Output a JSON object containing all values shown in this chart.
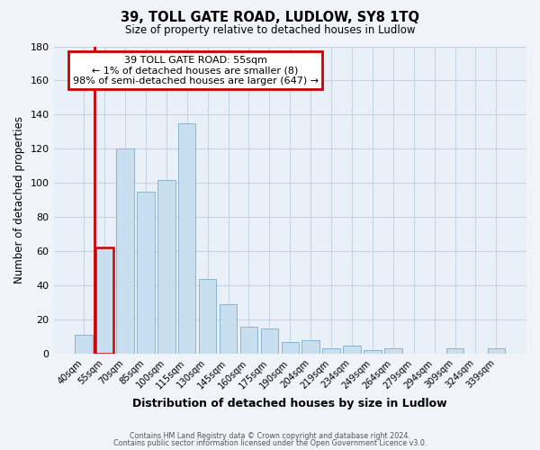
{
  "title": "39, TOLL GATE ROAD, LUDLOW, SY8 1TQ",
  "subtitle": "Size of property relative to detached houses in Ludlow",
  "xlabel": "Distribution of detached houses by size in Ludlow",
  "ylabel": "Number of detached properties",
  "bar_labels": [
    "40sqm",
    "55sqm",
    "70sqm",
    "85sqm",
    "100sqm",
    "115sqm",
    "130sqm",
    "145sqm",
    "160sqm",
    "175sqm",
    "190sqm",
    "204sqm",
    "219sqm",
    "234sqm",
    "249sqm",
    "264sqm",
    "279sqm",
    "294sqm",
    "309sqm",
    "324sqm",
    "339sqm"
  ],
  "bar_values": [
    11,
    62,
    120,
    95,
    102,
    135,
    44,
    29,
    16,
    15,
    7,
    8,
    3,
    5,
    2,
    3,
    0,
    0,
    3,
    0,
    3
  ],
  "bar_color": "#c8dff0",
  "bar_edge_color": "#8ab4d4",
  "highlight_bar_index": 1,
  "highlight_edge_color": "#cc0000",
  "highlight_line_color": "#cc0000",
  "ylim": [
    0,
    180
  ],
  "yticks": [
    0,
    20,
    40,
    60,
    80,
    100,
    120,
    140,
    160,
    180
  ],
  "annotation_title": "39 TOLL GATE ROAD: 55sqm",
  "annotation_line1": "← 1% of detached houses are smaller (8)",
  "annotation_line2": "98% of semi-detached houses are larger (647) →",
  "annotation_box_edge": "#cc0000",
  "footer_line1": "Contains HM Land Registry data © Crown copyright and database right 2024.",
  "footer_line2": "Contains public sector information licensed under the Open Government Licence v3.0.",
  "bg_color": "#f0f4f8",
  "plot_bg_color": "#eaf0f8",
  "grid_color": "#c5d5e5"
}
